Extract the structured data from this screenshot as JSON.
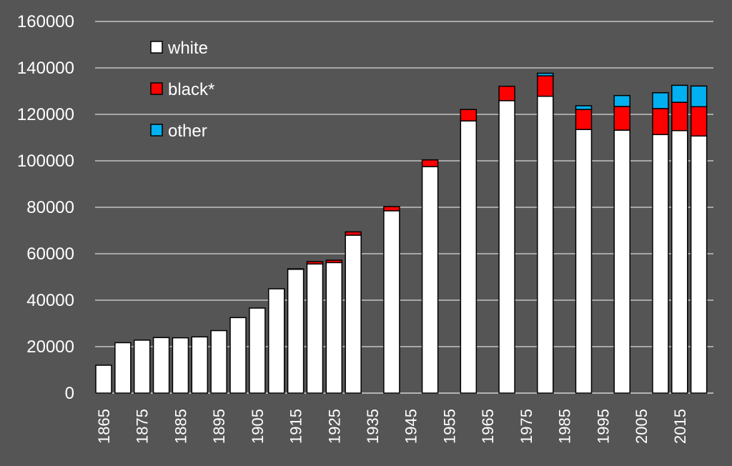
{
  "colors": {
    "background": "#555555",
    "gridline": "#d9d9d9",
    "bar_outline": "#000000"
  },
  "chart_data": {
    "type": "bar",
    "stacked": true,
    "title": "",
    "xlabel": "",
    "ylabel": "",
    "ylim": [
      0,
      160000
    ],
    "yticks": [
      0,
      20000,
      40000,
      60000,
      80000,
      100000,
      120000,
      140000,
      160000
    ],
    "xlim": [
      1865,
      2021
    ],
    "xticks": [
      1865,
      1875,
      1885,
      1895,
      1905,
      1915,
      1925,
      1935,
      1945,
      1955,
      1965,
      1975,
      1985,
      1995,
      2005,
      2015
    ],
    "grid": true,
    "legend_position": "top-left",
    "x": [
      1865,
      1870,
      1875,
      1880,
      1885,
      1890,
      1895,
      1900,
      1905,
      1910,
      1915,
      1920,
      1925,
      1930,
      1940,
      1950,
      1960,
      1970,
      1980,
      1990,
      2000,
      2010,
      2015,
      2020
    ],
    "series": [
      {
        "name": "white",
        "color": "#ffffff",
        "values": [
          12000,
          21700,
          22800,
          23900,
          23800,
          24200,
          26900,
          32500,
          36600,
          44900,
          53300,
          55600,
          56200,
          68000,
          78500,
          97500,
          117200,
          125900,
          127800,
          113500,
          113200,
          111300,
          113000,
          110700
        ]
      },
      {
        "name": "black*",
        "color": "#ff0000",
        "values": [
          0,
          0,
          0,
          0,
          0,
          0,
          0,
          0,
          0,
          0,
          200,
          1000,
          1000,
          1400,
          1800,
          2900,
          4900,
          6200,
          8800,
          8600,
          10200,
          11200,
          12200,
          12600
        ]
      },
      {
        "name": "other",
        "color": "#00b0f0",
        "values": [
          0,
          0,
          0,
          0,
          0,
          0,
          0,
          0,
          0,
          0,
          0,
          0,
          0,
          0,
          0,
          0,
          0,
          0,
          1100,
          1600,
          4700,
          6800,
          7300,
          8900
        ]
      }
    ]
  }
}
